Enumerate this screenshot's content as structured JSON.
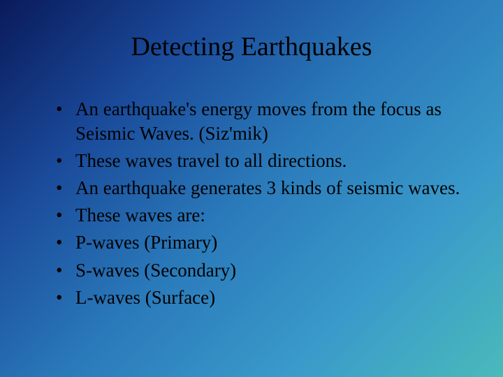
{
  "slide": {
    "title": "Detecting Earthquakes",
    "bullets": [
      "An earthquake's energy moves from the focus as Seismic Waves. (Siz'mik)",
      "These waves travel to all directions.",
      "An earthquake generates 3 kinds of seismic waves.",
      "These waves are:",
      "P-waves (Primary)",
      "S-waves (Secondary)",
      "L-waves (Surface)"
    ],
    "background_gradient": {
      "start": "#0a1a5a",
      "mid1": "#1a4a9a",
      "mid2": "#2a7aba",
      "mid3": "#3a9aca",
      "end": "#4ababa",
      "direction": "135deg"
    },
    "text_color": "#000000",
    "title_fontsize": 38,
    "body_fontsize": 27,
    "font_family": "Times New Roman"
  }
}
